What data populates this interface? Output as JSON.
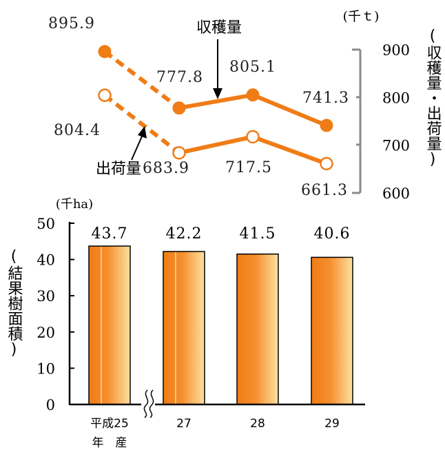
{
  "chart_data": [
    {
      "type": "line",
      "unit": "(千ｔ)",
      "ylabel": "(収穫量・出荷量)",
      "ylim": [
        600,
        900
      ],
      "yticks": [
        "900",
        "800",
        "700",
        "600"
      ],
      "series": [
        {
          "name": "収穫量",
          "values": [
            895.9,
            777.8,
            805.1,
            741.3
          ],
          "labels": [
            "895.9",
            "777.8",
            "805.1",
            "741.3"
          ],
          "marker": "filled"
        },
        {
          "name": "出荷量",
          "values": [
            804.4,
            683.9,
            717.5,
            661.3
          ],
          "labels": [
            "804.4",
            "683.9",
            "717.5",
            "661.3"
          ],
          "marker": "open"
        }
      ],
      "note": "First segment drawn dashed"
    },
    {
      "type": "bar",
      "unit": "(千ha)",
      "ylabel": "(結果樹面積)",
      "categories": [
        "平成25\n年　産",
        "27",
        "28",
        "29"
      ],
      "values": [
        43.7,
        42.2,
        41.5,
        40.6
      ],
      "labels": [
        "43.7",
        "42.2",
        "41.5",
        "40.6"
      ],
      "ylim": [
        0,
        50
      ],
      "yticks": [
        "0",
        "10",
        "20",
        "30",
        "40",
        "50"
      ],
      "axis_break_after_first": true
    }
  ],
  "colors": {
    "line": "#f07c16",
    "bar_dark": "#f07c16",
    "bar_light": "#fde0a0",
    "bracket": "#8a8a8a",
    "axis": "#000000"
  }
}
